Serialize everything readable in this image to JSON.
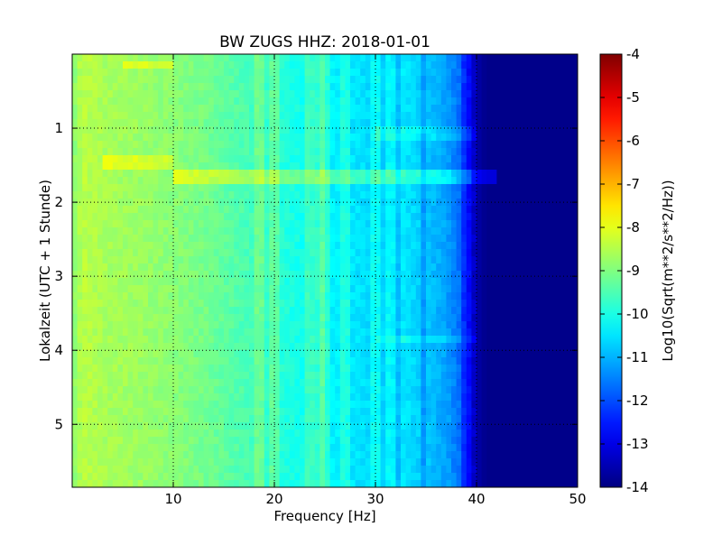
{
  "chart_data": {
    "type": "heatmap",
    "title": "BW ZUGS HHZ: 2018-01-01",
    "xlabel": "Frequency [Hz]",
    "ylabel": "Lokalzeit (UTC + 1 Stunde)",
    "xlim": [
      0,
      50
    ],
    "ylim": [
      5.85,
      0
    ],
    "x_ticks": [
      "10",
      "20",
      "30",
      "40",
      "50"
    ],
    "x_tick_values": [
      10,
      20,
      30,
      40,
      50
    ],
    "y_ticks": [
      "1",
      "2",
      "3",
      "4",
      "5"
    ],
    "y_tick_values": [
      1,
      2,
      3,
      4,
      5
    ],
    "grid": true,
    "colormap": "jet",
    "colorbar": {
      "label": "Log10(Sqrt(m**2/s**2/Hz))",
      "range": [
        -14,
        -4
      ],
      "ticks": [
        "-4",
        "-5",
        "-6",
        "-7",
        "-8",
        "-9",
        "-10",
        "-11",
        "-12",
        "-13",
        "-14"
      ],
      "tick_values": [
        -4,
        -5,
        -6,
        -7,
        -8,
        -9,
        -10,
        -11,
        -12,
        -13,
        -14
      ]
    },
    "spectrum_profile": {
      "frequency_hz": [
        0,
        1,
        3,
        6,
        10,
        13,
        16,
        19,
        22,
        25,
        28,
        31,
        34,
        37,
        39,
        40,
        41,
        50
      ],
      "log10_amplitude": [
        -9.0,
        -8.4,
        -8.6,
        -8.7,
        -8.9,
        -9.1,
        -9.4,
        -9.7,
        -10.0,
        -10.3,
        -10.5,
        -10.7,
        -11.1,
        -11.6,
        -12.4,
        -13.6,
        -13.9,
        -13.9
      ]
    },
    "spectral_lines_hz": [
      18.5,
      20.0,
      23.5,
      24.5,
      25.0,
      27.0,
      30.0,
      31.5,
      33.0,
      34.0,
      35.5,
      36.5,
      37.5,
      38.3
    ],
    "highlight_rows": [
      {
        "time": 1.65,
        "freq_range": [
          10,
          42
        ],
        "delta": 0.8
      },
      {
        "time": 0.15,
        "freq_range": [
          5,
          10
        ],
        "delta": 0.6
      },
      {
        "time": 1.45,
        "freq_range": [
          3,
          10
        ],
        "delta": 0.6
      },
      {
        "time": 1.05,
        "freq_range": [
          30,
          40
        ],
        "delta": 0.4
      },
      {
        "time": 3.85,
        "freq_range": [
          30,
          40
        ],
        "delta": 0.4
      }
    ]
  }
}
